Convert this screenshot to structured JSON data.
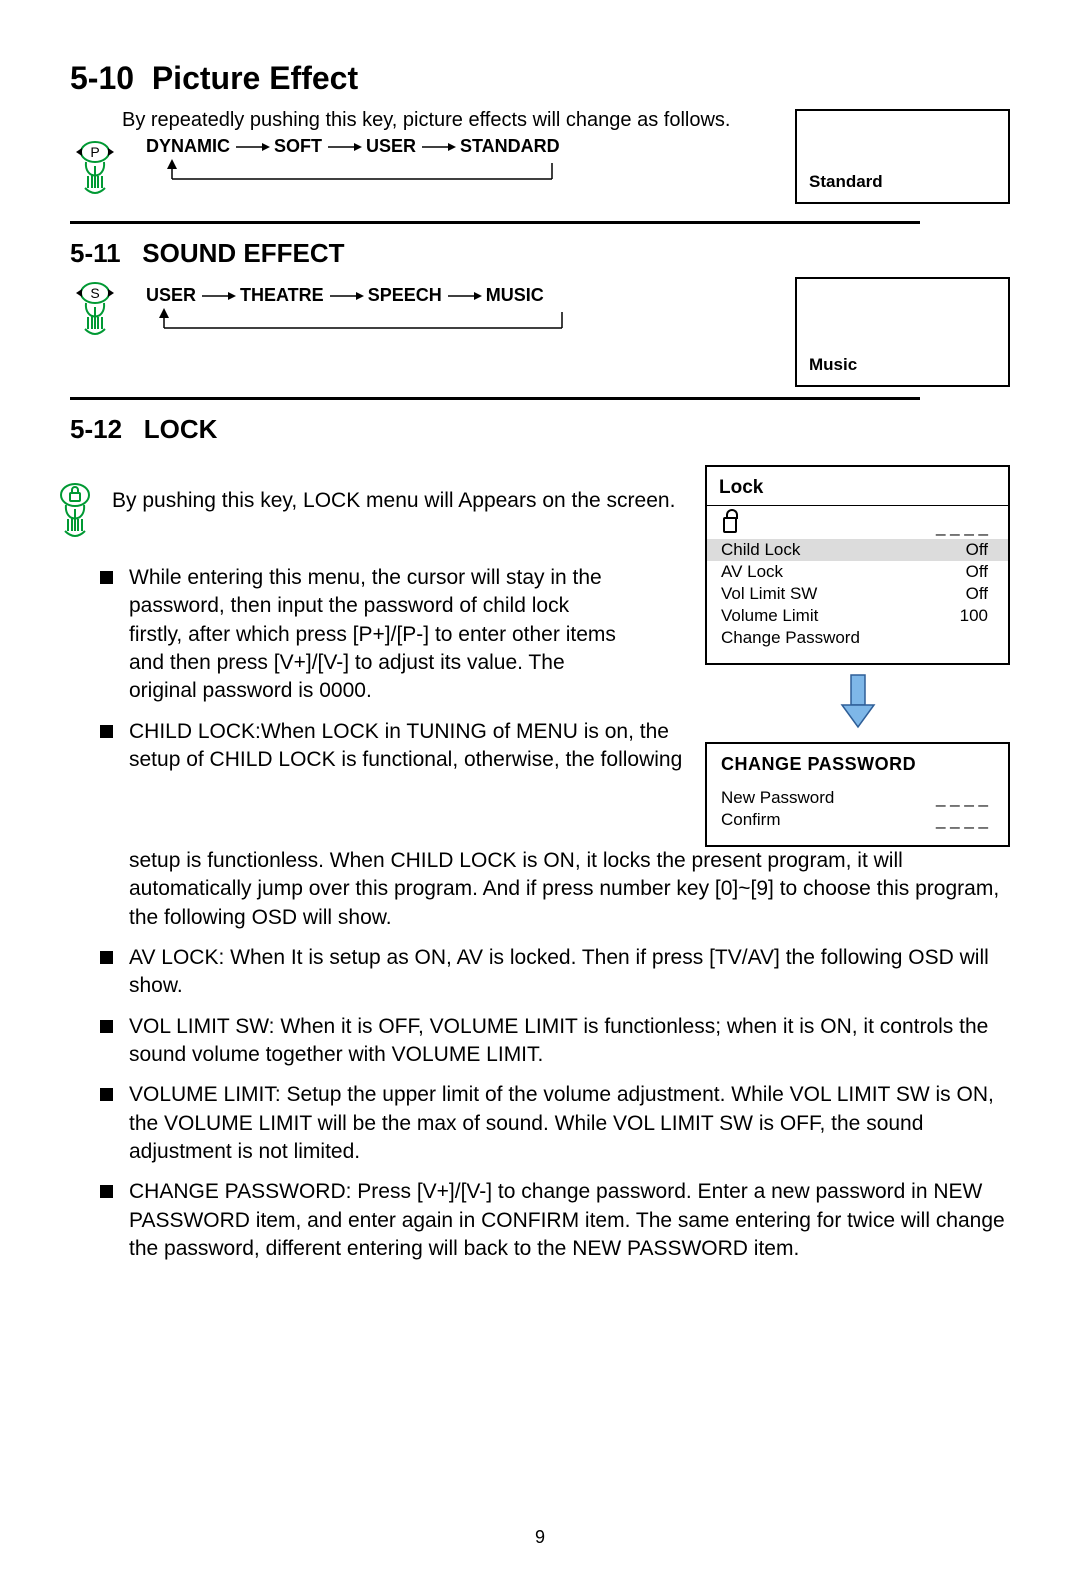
{
  "page_number": "9",
  "sec510": {
    "num": "5-10",
    "title": "Picture Effect",
    "intro": "By repeatedly pushing this key, picture effects will change as follows.",
    "flow": [
      "DYNAMIC",
      "SOFT",
      "USER",
      "STANDARD"
    ],
    "osd": "Standard",
    "icon_letter": "P"
  },
  "sec511": {
    "num": "5-11",
    "title": "SOUND EFFECT",
    "flow": [
      "USER",
      "THEATRE",
      "SPEECH",
      "MUSIC"
    ],
    "osd": "Music",
    "icon_letter": "S"
  },
  "sec512": {
    "num": "5-12",
    "title": "LOCK",
    "intro": "By pushing this key, LOCK menu will Appears on the screen.",
    "bullets": [
      "While entering this menu, the cursor will stay in the password, then input the password of child lock firstly, after which press [P+]/[P-] to enter other items and then press [V+]/[V-] to adjust its value. The original password is 0000.",
      "CHILD LOCK:When LOCK in TUNING of MENU is on, the setup of CHILD LOCK is functional, otherwise, the following setup is functionless. When CHILD LOCK is ON, it locks the present program, it will  automatically jump over this program. And if press number key [0]~[9] to choose this program, the following OSD will show.",
      "AV LOCK: When It is setup as ON, AV is locked. Then if press [TV/AV] the following OSD will show.",
      "VOL LIMIT SW: When it is OFF, VOLUME LIMIT is functionless; when it is ON, it controls the sound volume together with VOLUME LIMIT.",
      "VOLUME LIMIT: Setup the upper limit of the volume adjustment. While VOL LIMIT SW is ON, the VOLUME LIMIT will be the max of sound. While VOL LIMIT SW is OFF, the sound adjustment is not limited.",
      "CHANGE PASSWORD: Press [V+]/[V-] to change password. Enter a new password in NEW PASSWORD item, and enter again in CONFIRM item. The same entering for twice will change the password, different entering will back to the NEW PASSWORD item."
    ]
  },
  "lock_menu": {
    "header": "Lock",
    "pw_dashes": "_ _ _ _",
    "rows": [
      {
        "label": "Child Lock",
        "value": "Off",
        "selected": true
      },
      {
        "label": "AV Lock",
        "value": "Off",
        "selected": false
      },
      {
        "label": "Vol Limit SW",
        "value": "Off",
        "selected": false
      },
      {
        "label": "Volume Limit",
        "value": "100",
        "selected": false
      },
      {
        "label": "Change Password",
        "value": "",
        "selected": false
      }
    ]
  },
  "change_pw": {
    "header": "CHANGE PASSWORD",
    "rows": [
      {
        "label": "New Password",
        "value": "_ _ _ _"
      },
      {
        "label": "Confirm",
        "value": "_ _ _ _"
      }
    ]
  },
  "colors": {
    "icon_green": "#009933",
    "arrow_fill": "#7eb7e8",
    "arrow_stroke": "#2e5e97",
    "sel_bg": "#dcdcdc"
  }
}
